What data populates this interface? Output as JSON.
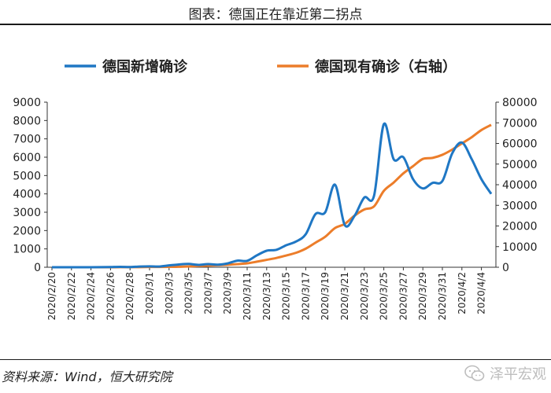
{
  "header": {
    "title": "图表：德国正在靠近第二拐点"
  },
  "footer": {
    "source": "资料来源：Wind，恒大研究院",
    "watermark": "泽平宏观"
  },
  "colors": {
    "new_cases": "#1f77c4",
    "active_cases": "#ec7d2a"
  },
  "chart_data": {
    "type": "line",
    "title": "图表：德国正在靠近第二拐点",
    "legend_position": "top",
    "grid": false,
    "categories": [
      "2020/2/20",
      "2020/2/21",
      "2020/2/22",
      "2020/2/23",
      "2020/2/24",
      "2020/2/25",
      "2020/2/26",
      "2020/2/27",
      "2020/2/28",
      "2020/2/29",
      "2020/3/1",
      "2020/3/2",
      "2020/3/3",
      "2020/3/4",
      "2020/3/5",
      "2020/3/6",
      "2020/3/7",
      "2020/3/8",
      "2020/3/9",
      "2020/3/10",
      "2020/3/11",
      "2020/3/12",
      "2020/3/13",
      "2020/3/14",
      "2020/3/15",
      "2020/3/16",
      "2020/3/17",
      "2020/3/18",
      "2020/3/19",
      "2020/3/20",
      "2020/3/21",
      "2020/3/22",
      "2020/3/23",
      "2020/3/24",
      "2020/3/25",
      "2020/3/26",
      "2020/3/27",
      "2020/3/28",
      "2020/3/29",
      "2020/3/30",
      "2020/3/31",
      "2020/4/1",
      "2020/4/2",
      "2020/4/3",
      "2020/4/4",
      "2020/4/5"
    ],
    "x_tick_labels": [
      "2020/2/20",
      "2020/2/22",
      "2020/2/24",
      "2020/2/26",
      "2020/2/28",
      "2020/3/1",
      "2020/3/3",
      "2020/3/5",
      "2020/3/7",
      "2020/3/9",
      "2020/3/11",
      "2020/3/13",
      "2020/3/15",
      "2020/3/17",
      "2020/3/19",
      "2020/3/21",
      "2020/3/23",
      "2020/3/25",
      "2020/3/27",
      "2020/3/29",
      "2020/3/31",
      "2020/4/2",
      "2020/4/4"
    ],
    "y_left": {
      "min": 0,
      "max": 9000,
      "ticks": [
        "0",
        "1000",
        "2000",
        "3000",
        "4000",
        "5000",
        "6000",
        "7000",
        "8000",
        "9000"
      ]
    },
    "y_right": {
      "min": 0,
      "max": 80000,
      "ticks": [
        "0",
        "10000",
        "20000",
        "30000",
        "40000",
        "50000",
        "60000",
        "70000",
        "80000"
      ]
    },
    "series": [
      {
        "name": "德国新增确诊",
        "axis": "left",
        "color": "#1f77c4",
        "values": [
          0,
          0,
          0,
          0,
          0,
          3,
          10,
          20,
          10,
          40,
          50,
          40,
          100,
          150,
          180,
          130,
          170,
          140,
          210,
          360,
          350,
          650,
          900,
          950,
          1200,
          1400,
          1800,
          2900,
          3000,
          4500,
          2300,
          2800,
          3800,
          3900,
          7800,
          5900,
          6000,
          4800,
          4300,
          4600,
          4700,
          6200,
          6800,
          5900,
          4800,
          4000
        ]
      },
      {
        "name": "德国现有确诊（右轴）",
        "axis": "right",
        "color": "#ec7d2a",
        "values": [
          16,
          16,
          16,
          16,
          16,
          16,
          16,
          26,
          46,
          62,
          120,
          150,
          190,
          250,
          400,
          600,
          800,
          1000,
          1200,
          1500,
          1900,
          2700,
          3600,
          4500,
          5700,
          7000,
          9000,
          11900,
          14800,
          19000,
          21000,
          25000,
          28000,
          29500,
          37000,
          41000,
          45500,
          49000,
          52500,
          53000,
          54500,
          57000,
          60000,
          63000,
          66500,
          69000
        ]
      }
    ]
  }
}
